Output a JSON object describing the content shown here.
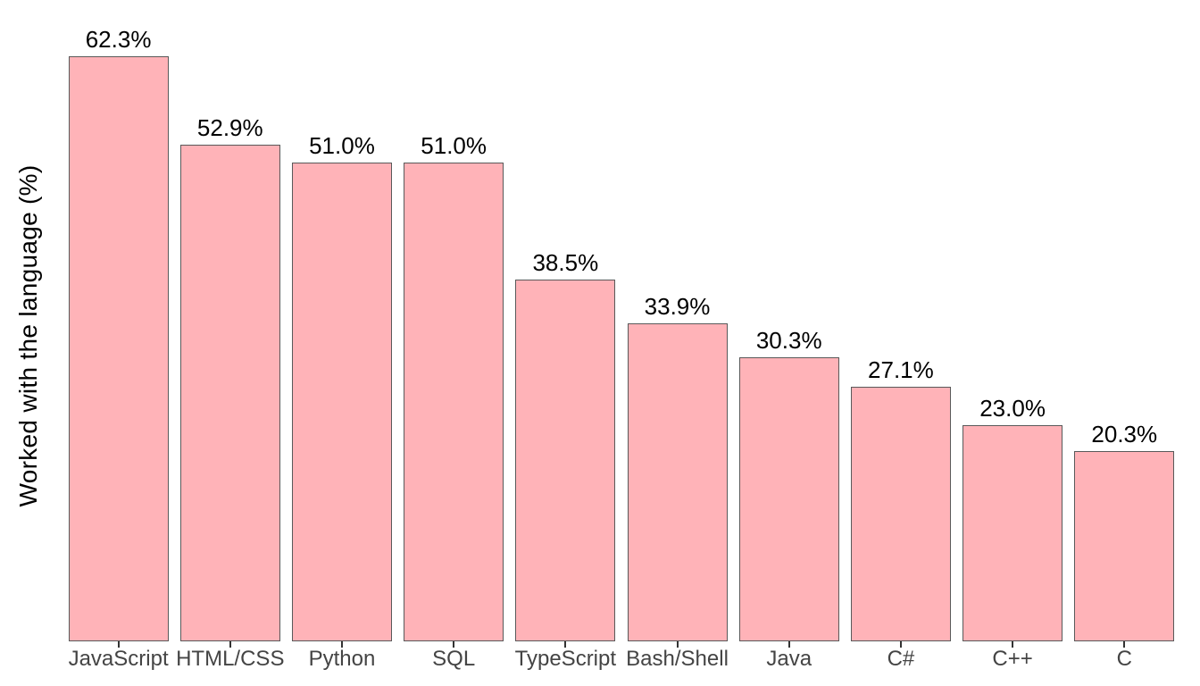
{
  "chart_data": {
    "type": "bar",
    "categories": [
      "JavaScript",
      "HTML/CSS",
      "Python",
      "SQL",
      "TypeScript",
      "Bash/Shell",
      "Java",
      "C#",
      "C++",
      "C"
    ],
    "values": [
      62.3,
      52.9,
      51.0,
      51.0,
      38.5,
      33.9,
      30.3,
      27.1,
      23.0,
      20.3
    ],
    "value_labels": [
      "62.3%",
      "52.9%",
      "51.0%",
      "51.0%",
      "38.5%",
      "33.9%",
      "30.3%",
      "27.1%",
      "23.0%",
      "20.3%"
    ],
    "title": "",
    "xlabel": "",
    "ylabel": "Worked with the language (%)",
    "ylim": [
      0,
      65
    ],
    "grid": false,
    "legend": false,
    "colors": {
      "bar_fill": "#ffb3b8",
      "bar_border": "#595959",
      "value_label": "#000000",
      "axis_text": "#444444",
      "axis_title": "#000000",
      "tick": "#333333",
      "background": "#ffffff"
    }
  }
}
